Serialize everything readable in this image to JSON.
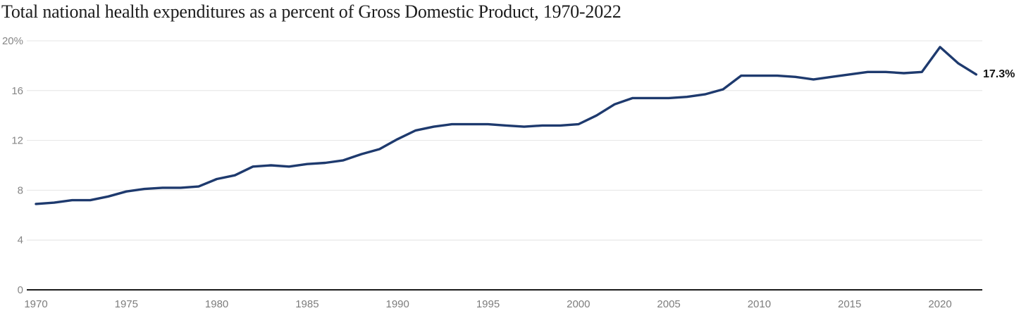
{
  "title": "Total national health expenditures as a percent of Gross Domestic Product, 1970-2022",
  "colors": {
    "background": "#ffffff",
    "line": "#1e3a6e",
    "grid": "#e4e4e4",
    "axis": "#1a1a1a",
    "y_tick_label": "#868686",
    "x_tick_label": "#7d7d7d",
    "title_text": "#1c1c1c",
    "end_label_text": "#131313"
  },
  "chart_data": {
    "type": "line",
    "title": "Total national health expenditures as a percent of Gross Domestic Product, 1970-2022",
    "series_name": "Total national health expenditures as a percent of GDP",
    "xlabel": "",
    "ylabel": "",
    "ylim": [
      0,
      20
    ],
    "xlim": [
      1970,
      2022
    ],
    "grid": "horizontal",
    "legend": "none",
    "end_label": "17.3%",
    "x": [
      1970,
      1971,
      1972,
      1973,
      1974,
      1975,
      1976,
      1977,
      1978,
      1979,
      1980,
      1981,
      1982,
      1983,
      1984,
      1985,
      1986,
      1987,
      1988,
      1989,
      1990,
      1991,
      1992,
      1993,
      1994,
      1995,
      1996,
      1997,
      1998,
      1999,
      2000,
      2001,
      2002,
      2003,
      2004,
      2005,
      2006,
      2007,
      2008,
      2009,
      2010,
      2011,
      2012,
      2013,
      2014,
      2015,
      2016,
      2017,
      2018,
      2019,
      2020,
      2021,
      2022
    ],
    "values": [
      6.9,
      7.0,
      7.2,
      7.2,
      7.5,
      7.9,
      8.1,
      8.2,
      8.2,
      8.3,
      8.9,
      9.2,
      9.9,
      10.0,
      9.9,
      10.1,
      10.2,
      10.4,
      10.9,
      11.3,
      12.1,
      12.8,
      13.1,
      13.3,
      13.3,
      13.3,
      13.2,
      13.1,
      13.2,
      13.2,
      13.3,
      14.0,
      14.9,
      15.4,
      15.4,
      15.4,
      15.5,
      15.7,
      16.1,
      17.2,
      17.2,
      17.2,
      17.1,
      16.9,
      17.1,
      17.3,
      17.5,
      17.5,
      17.4,
      17.5,
      19.5,
      18.2,
      17.3
    ],
    "y_ticks": [
      {
        "value": 0,
        "label": "0"
      },
      {
        "value": 4,
        "label": "4"
      },
      {
        "value": 8,
        "label": "8"
      },
      {
        "value": 12,
        "label": "12"
      },
      {
        "value": 16,
        "label": "16"
      },
      {
        "value": 20,
        "label": "20%"
      }
    ],
    "x_ticks": [
      {
        "value": 1970,
        "label": "1970"
      },
      {
        "value": 1975,
        "label": "1975"
      },
      {
        "value": 1980,
        "label": "1980"
      },
      {
        "value": 1985,
        "label": "1985"
      },
      {
        "value": 1990,
        "label": "1990"
      },
      {
        "value": 1995,
        "label": "1995"
      },
      {
        "value": 2000,
        "label": "2000"
      },
      {
        "value": 2005,
        "label": "2005"
      },
      {
        "value": 2010,
        "label": "2010"
      },
      {
        "value": 2015,
        "label": "2015"
      },
      {
        "value": 2020,
        "label": "2020"
      }
    ]
  }
}
